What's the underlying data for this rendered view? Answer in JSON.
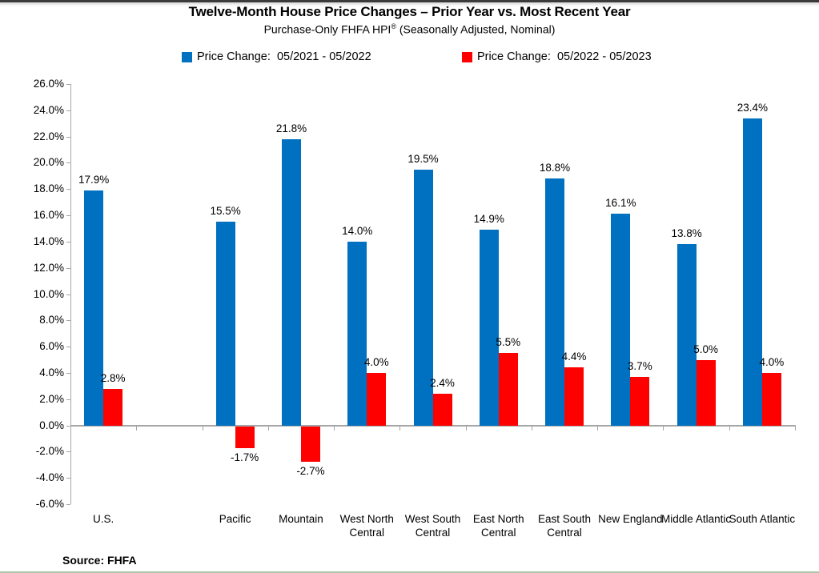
{
  "header": {
    "title": "Twelve-Month House Price Changes – Prior Year vs. Most Recent Year",
    "subtitle": {
      "text": "Purchase-Only FHFA HPI",
      "sup": "®",
      "rest": " (Seasonally Adjusted, Nominal)"
    }
  },
  "legend": {
    "items": [
      {
        "label": "Price Change:  05/2021 - 05/2022",
        "color": "#0071C0"
      },
      {
        "label": "Price Change:  05/2022 - 05/2023",
        "color": "#FF0000"
      }
    ]
  },
  "chart_data": {
    "type": "bar",
    "title": "Twelve-Month House Price Changes – Prior Year vs. Most Recent Year",
    "subtitle": "Purchase-Only FHFA HPI® (Seasonally Adjusted, Nominal)",
    "categories": [
      "U.S.",
      "Pacific",
      "Mountain",
      "West North Central",
      "West South Central",
      "East North Central",
      "East South Central",
      "New England",
      "Middle Atlantic",
      "South Atlantic"
    ],
    "series": [
      {
        "name": "Price Change:  05/2021 - 05/2022",
        "color": "#0071C0",
        "values": [
          17.9,
          15.5,
          21.8,
          14.0,
          19.5,
          14.9,
          18.8,
          16.1,
          13.8,
          23.4
        ]
      },
      {
        "name": "Price Change:  05/2022 - 05/2023",
        "color": "#FF0000",
        "values": [
          2.8,
          -1.7,
          -2.7,
          4.0,
          2.4,
          5.5,
          4.4,
          3.7,
          5.0,
          4.0
        ]
      }
    ],
    "ylim": [
      -6.0,
      26.0
    ],
    "ytick_step": 2.0,
    "ytick_format": "0.0%",
    "grid": false,
    "legend_position": "top",
    "gap_slot_after_first_category": true,
    "axis_color": "#A6A6A6"
  },
  "footer": {
    "source": "Source: FHFA",
    "rule_color": "#ABC7AB"
  }
}
